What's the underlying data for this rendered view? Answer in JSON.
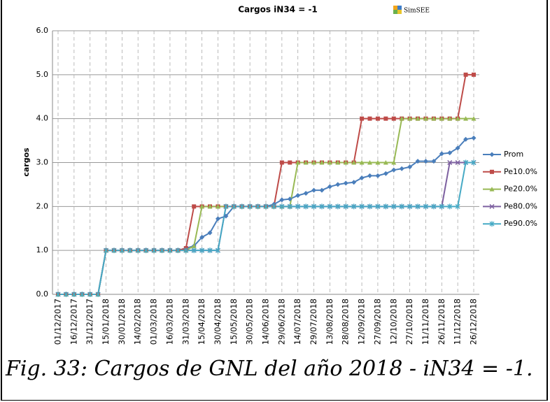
{
  "chart_data": {
    "type": "line",
    "title": "Cargos iN34 = -1",
    "watermark": "SimSEE",
    "y_label": "cargos",
    "categories": [
      "01/12/2017",
      null,
      "16/12/2017",
      null,
      "31/12/2017",
      null,
      "15/01/2018",
      null,
      "30/01/2018",
      null,
      "14/02/2018",
      null,
      "01/03/2018",
      null,
      "16/03/2018",
      null,
      "31/03/2018",
      null,
      "15/04/2018",
      null,
      "30/04/2018",
      null,
      "15/05/2018",
      null,
      "30/05/2018",
      null,
      "14/06/2018",
      null,
      "29/06/2018",
      null,
      "14/07/2018",
      null,
      "29/07/2018",
      null,
      "13/08/2018",
      null,
      "28/08/2018",
      null,
      "12/09/2018",
      null,
      "27/09/2018",
      null,
      "12/10/2018",
      null,
      "27/10/2018",
      null,
      "11/11/2018",
      null,
      "26/11/2018",
      null,
      "11/12/2018",
      null,
      "26/12/2018"
    ],
    "series": [
      {
        "name": "Prom",
        "color": "#4a7ebb",
        "marker": "diamond",
        "values": [
          0,
          0,
          0,
          0,
          0,
          0,
          1,
          1,
          1,
          1,
          1,
          1,
          1,
          1,
          1,
          1,
          1.05,
          1.1,
          1.3,
          1.4,
          1.72,
          1.78,
          2,
          2,
          2,
          2,
          2,
          2.05,
          2.15,
          2.17,
          2.25,
          2.3,
          2.37,
          2.37,
          2.45,
          2.5,
          2.53,
          2.55,
          2.65,
          2.7,
          2.7,
          2.75,
          2.83,
          2.86,
          2.9,
          3.03,
          3.03,
          3.03,
          3.2,
          3.22,
          3.33,
          3.53,
          3.56
        ]
      },
      {
        "name": "Pe10.0%",
        "color": "#be4b48",
        "marker": "square",
        "values": [
          0,
          0,
          0,
          0,
          0,
          0,
          1,
          1,
          1,
          1,
          1,
          1,
          1,
          1,
          1,
          1,
          1.05,
          2,
          2,
          2,
          2,
          2,
          2,
          2,
          2,
          2,
          2,
          2,
          3,
          3,
          3,
          3,
          3,
          3,
          3,
          3,
          3,
          3,
          4,
          4,
          4,
          4,
          4,
          4,
          4,
          4,
          4,
          4,
          4,
          4,
          4,
          5,
          5
        ]
      },
      {
        "name": "Pe20.0%",
        "color": "#98b954",
        "marker": "triangle",
        "values": [
          0,
          0,
          0,
          0,
          0,
          0,
          1,
          1,
          1,
          1,
          1,
          1,
          1,
          1,
          1,
          1,
          1,
          1.1,
          2,
          2,
          2,
          2,
          2,
          2,
          2,
          2,
          2,
          2,
          2,
          2,
          3,
          3,
          3,
          3,
          3,
          3,
          3,
          3,
          3,
          3,
          3,
          3,
          3,
          4,
          4,
          4,
          4,
          4,
          4,
          4,
          4,
          4,
          4
        ]
      },
      {
        "name": "Pe80.0%",
        "color": "#7d60a0",
        "marker": "x",
        "values": [
          0,
          0,
          0,
          0,
          0,
          0,
          1,
          1,
          1,
          1,
          1,
          1,
          1,
          1,
          1,
          1,
          1,
          1,
          1,
          1,
          1,
          2,
          2,
          2,
          2,
          2,
          2,
          2,
          2,
          2,
          2,
          2,
          2,
          2,
          2,
          2,
          2,
          2,
          2,
          2,
          2,
          2,
          2,
          2,
          2,
          2,
          2,
          2,
          2,
          3,
          3,
          3,
          3
        ]
      },
      {
        "name": "Pe90.0%",
        "color": "#46aac5",
        "marker": "star",
        "values": [
          0,
          0,
          0,
          0,
          0,
          0,
          1,
          1,
          1,
          1,
          1,
          1,
          1,
          1,
          1,
          1,
          1,
          1,
          1,
          1,
          1,
          2,
          2,
          2,
          2,
          2,
          2,
          2,
          2,
          2,
          2,
          2,
          2,
          2,
          2,
          2,
          2,
          2,
          2,
          2,
          2,
          2,
          2,
          2,
          2,
          2,
          2,
          2,
          2,
          2,
          2,
          3,
          3
        ]
      }
    ],
    "ylim": [
      0,
      6
    ],
    "yticks": [
      {
        "value": 0,
        "label": "0.0"
      },
      {
        "value": 1,
        "label": "1.0"
      },
      {
        "value": 2,
        "label": "2.0"
      },
      {
        "value": 3,
        "label": "3.0"
      },
      {
        "value": 4,
        "label": "4.0"
      },
      {
        "value": 5,
        "label": "5.0"
      },
      {
        "value": 6,
        "label": "6.0"
      }
    ],
    "grid": true,
    "legend": "right"
  },
  "caption": "Fig. 33: Cargos de GNL del año 2018 - iN34 = -1."
}
